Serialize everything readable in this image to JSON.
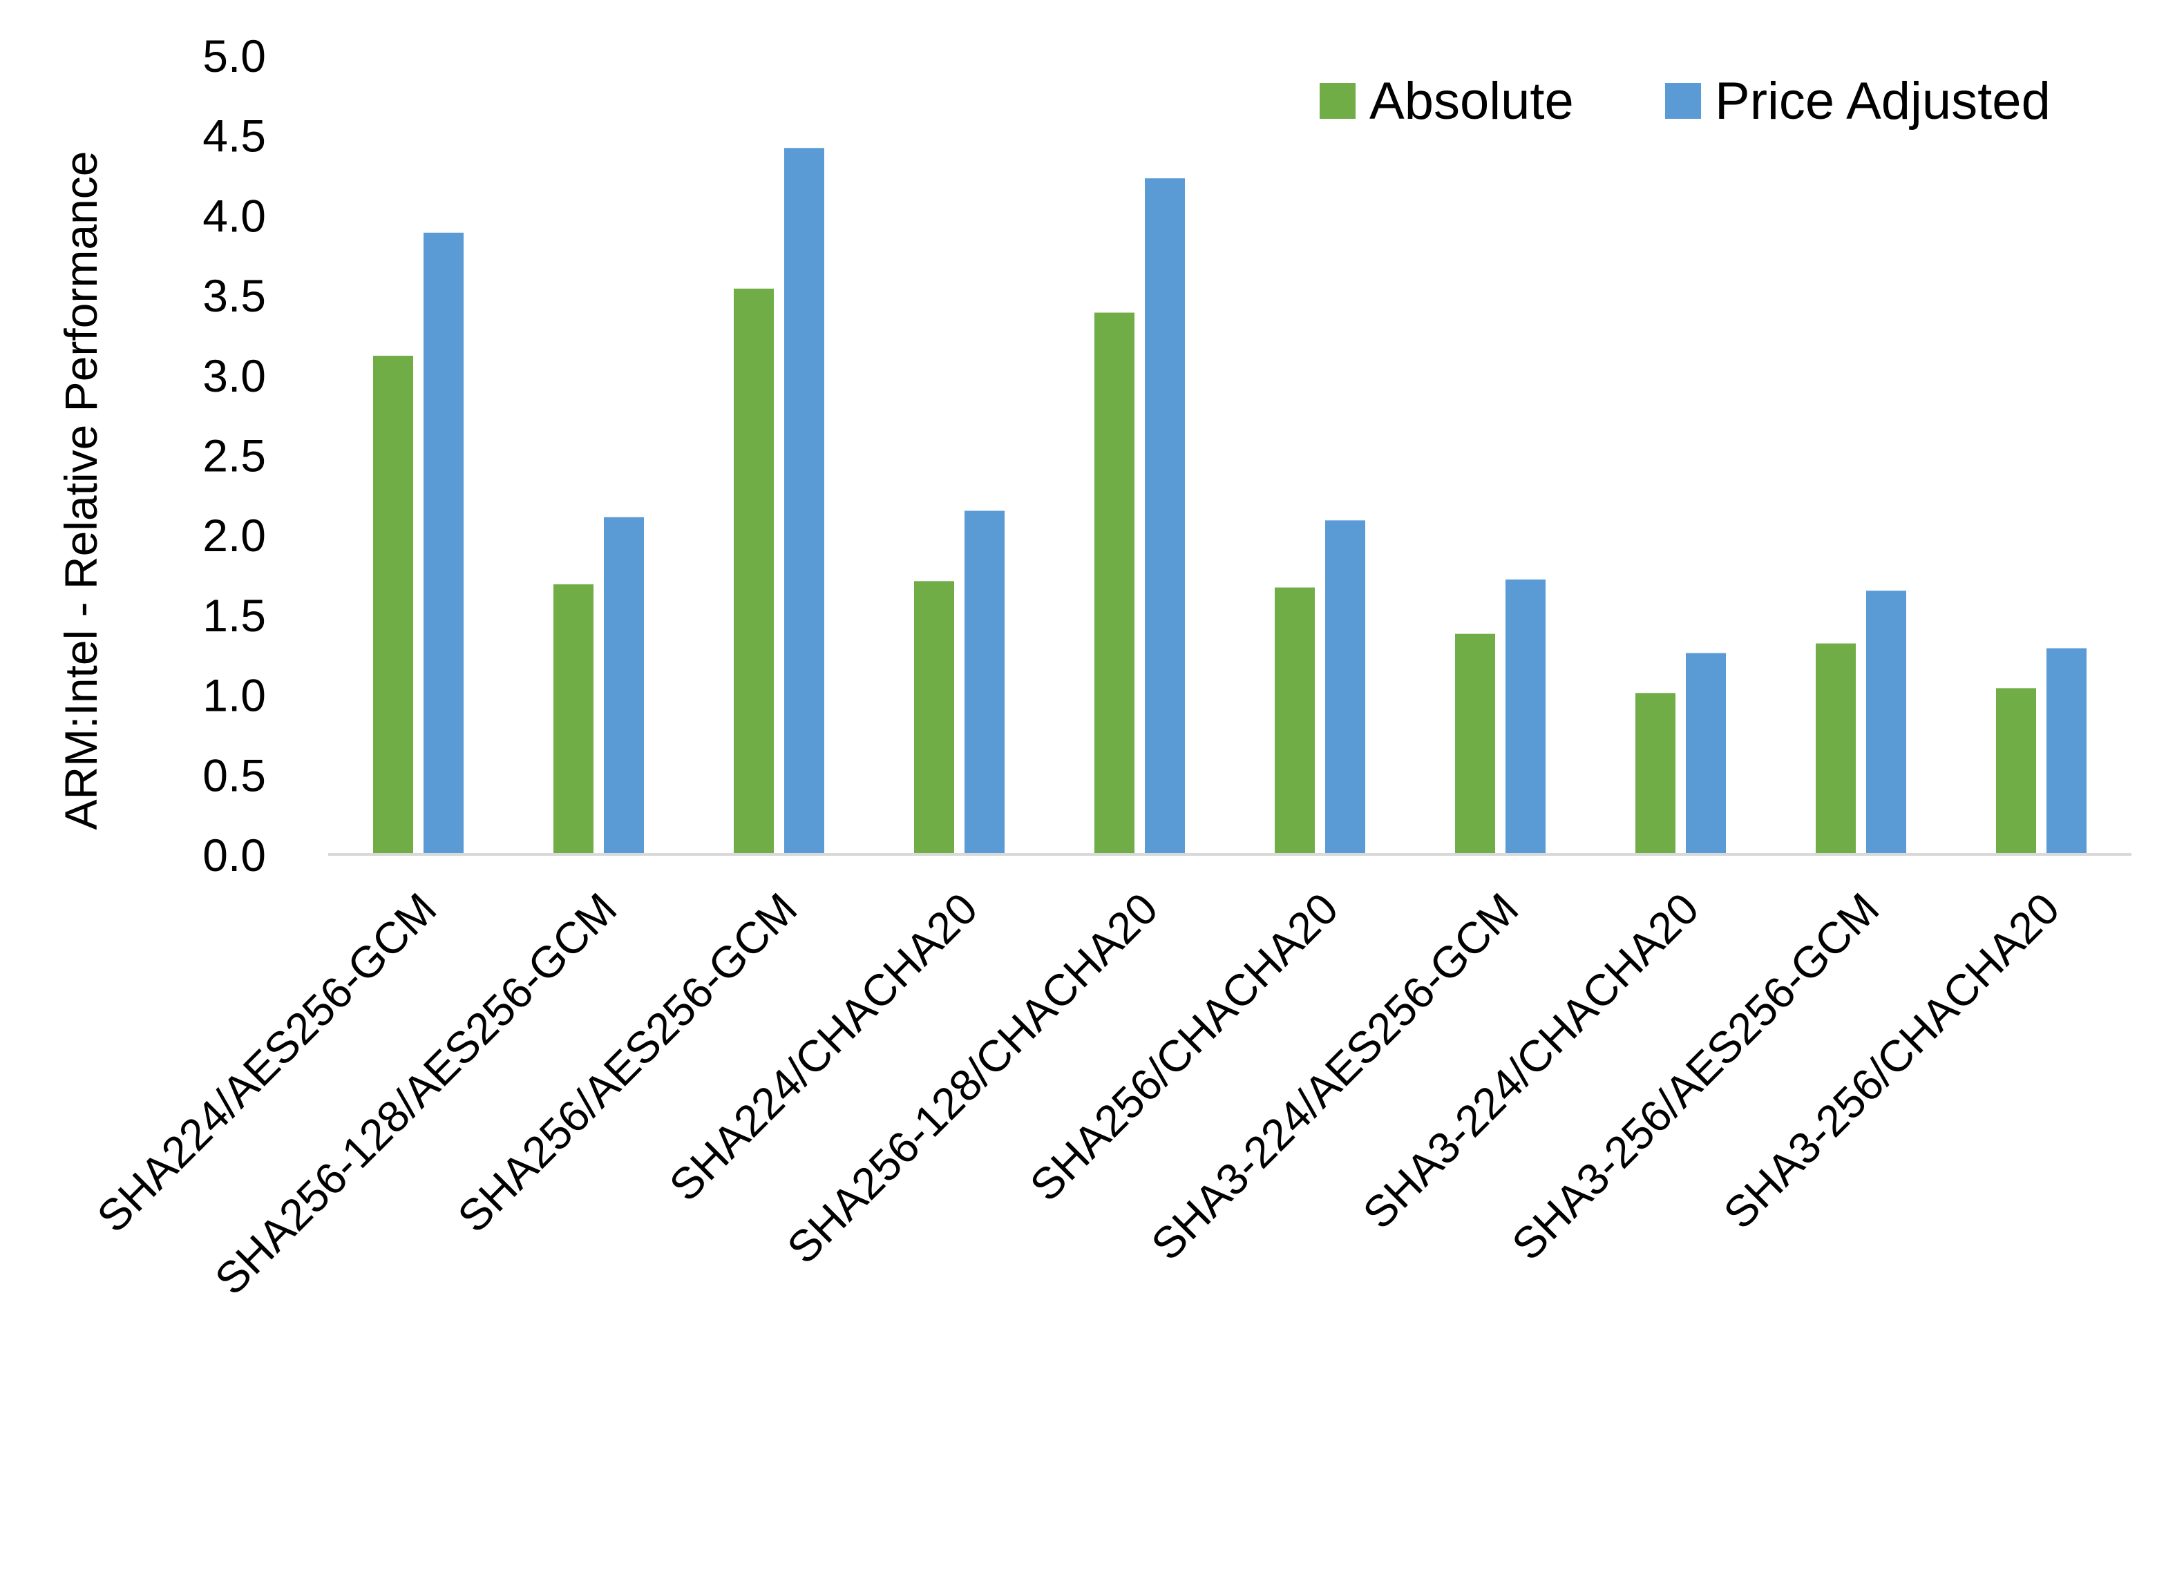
{
  "chart_data": {
    "type": "bar",
    "title": "",
    "xlabel": "",
    "ylabel": "ARM:Intel - Relative Performance",
    "ylim": [
      0,
      5
    ],
    "yticks": [
      "0.0",
      "0.5",
      "1.0",
      "1.5",
      "2.0",
      "2.5",
      "3.0",
      "3.5",
      "4.0",
      "4.5",
      "5.0"
    ],
    "grid": false,
    "legend_position": "top-right",
    "categories": [
      "SHA224/AES256-GCM",
      "SHA256-128/AES256-GCM",
      "SHA256/AES256-GCM",
      "SHA224/CHACHA20",
      "SHA256-128/CHACHA20",
      "SHA256/CHACHA20",
      "SHA3-224/AES256-GCM",
      "SHA3-224/CHACHA20",
      "SHA3-256/AES256-GCM",
      "SHA3-256/CHACHA20"
    ],
    "series": [
      {
        "name": "Absolute",
        "color": "#70AD47",
        "values": [
          3.12,
          1.69,
          3.54,
          1.71,
          3.39,
          1.67,
          1.38,
          1.01,
          1.32,
          1.04
        ]
      },
      {
        "name": "Price Adjusted",
        "color": "#5B9BD5",
        "values": [
          3.89,
          2.11,
          4.42,
          2.15,
          4.23,
          2.09,
          1.72,
          1.26,
          1.65,
          1.29
        ]
      }
    ]
  }
}
